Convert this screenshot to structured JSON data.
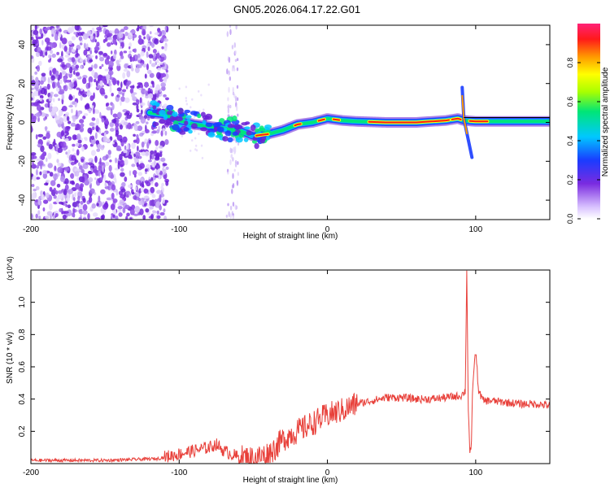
{
  "title": "GN05.2026.064.17.22.G01",
  "colors": {
    "signal": "#e8403a",
    "background_scatter": "#7a2be0"
  },
  "chart_data": [
    {
      "type": "heatmap",
      "xlabel": "Height of straight line (km)",
      "ylabel": "Frequency (Hz)",
      "xlim": [
        -200,
        150
      ],
      "ylim": [
        -50,
        50
      ],
      "x_ticks": [
        -200,
        -100,
        0,
        100
      ],
      "y_ticks": [
        -40,
        -20,
        0,
        20,
        40
      ],
      "grid": false,
      "colorbar": {
        "label": "Normalized spectral amplitude",
        "range": [
          0,
          1
        ],
        "ticks": [
          0.0,
          0.2,
          0.4,
          0.6,
          0.8
        ]
      },
      "ridge": {
        "x": [
          -120,
          -110,
          -100,
          -90,
          -80,
          -70,
          -60,
          -50,
          -40,
          -30,
          -20,
          -10,
          0,
          10,
          20,
          40,
          60,
          80,
          88,
          92,
          100,
          120,
          150
        ],
        "y": [
          5,
          4,
          1,
          -1,
          -2,
          -3,
          -4,
          -7,
          -6,
          -4,
          -1,
          0,
          2,
          1,
          0.5,
          0,
          0,
          1,
          2,
          1,
          0.5,
          0.5,
          0.5
        ]
      }
    },
    {
      "type": "line",
      "xlabel": "Height of straight line (km)",
      "ylabel": "SNR (10 * v/v)",
      "y_multiplier": "(x10^4)",
      "xlim": [
        -200,
        150
      ],
      "ylim": [
        0,
        1.2
      ],
      "x_ticks": [
        -200,
        -100,
        0,
        100
      ],
      "y_ticks": [
        0.2,
        0.4,
        0.6,
        0.8,
        1.0
      ],
      "grid": false,
      "series": [
        {
          "x": [
            -200,
            -150,
            -115,
            -105,
            -100,
            -90,
            -80,
            -75,
            -70,
            -60,
            -50,
            -40,
            -35,
            -30,
            -25,
            -20,
            -10,
            0,
            10,
            20,
            30,
            40,
            50,
            60,
            70,
            80,
            90,
            93,
            94,
            95,
            96,
            97,
            98,
            100,
            102,
            105,
            110,
            120,
            130,
            140,
            150
          ],
          "y": [
            0.02,
            0.02,
            0.03,
            0.05,
            0.06,
            0.08,
            0.1,
            0.12,
            0.08,
            0.04,
            0.03,
            0.06,
            0.1,
            0.15,
            0.18,
            0.2,
            0.25,
            0.3,
            0.33,
            0.37,
            0.39,
            0.41,
            0.41,
            0.4,
            0.4,
            0.41,
            0.42,
            0.45,
            1.2,
            0.35,
            0.08,
            0.06,
            0.5,
            0.7,
            0.45,
            0.39,
            0.39,
            0.38,
            0.37,
            0.37,
            0.36
          ]
        }
      ]
    }
  ]
}
